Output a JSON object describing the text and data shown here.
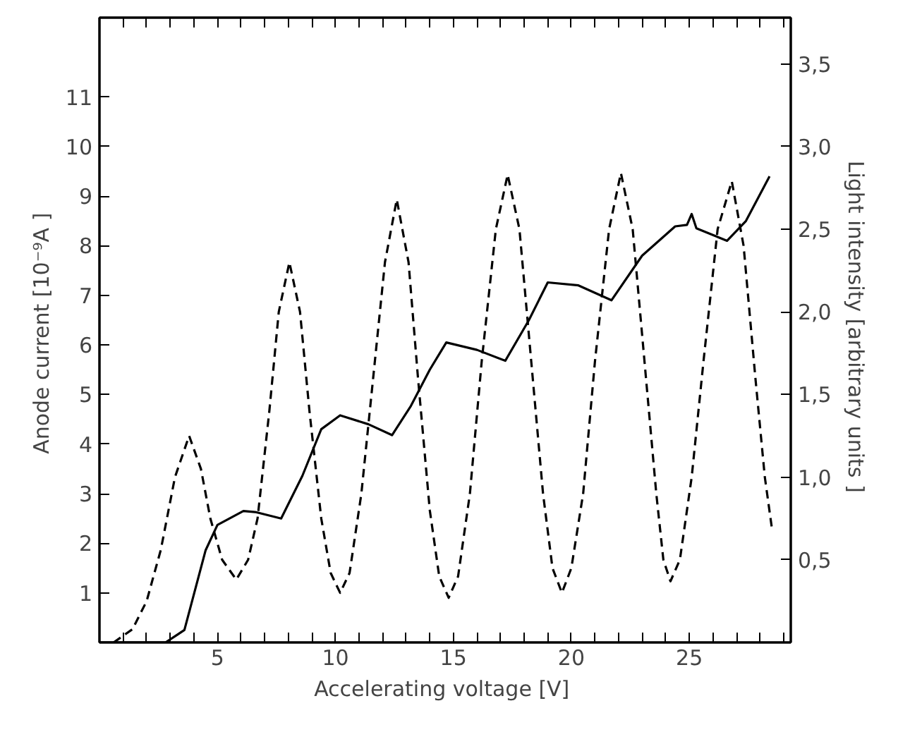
{
  "chart_data": {
    "type": "line",
    "xlabel": "Accelerating voltage  [V]",
    "ylabel": "Anode current  [10⁻⁹A ]",
    "y2label": "Light intensity  [arbitrary units ]",
    "xlim": [
      0,
      29.3
    ],
    "ylim": [
      0,
      12.6
    ],
    "y2lim": [
      0,
      3.78
    ],
    "xticks": [
      {
        "value": 1,
        "label": null
      },
      {
        "value": 2,
        "label": null
      },
      {
        "value": 3,
        "label": null
      },
      {
        "value": 4,
        "label": null
      },
      5,
      {
        "value": 6,
        "label": null
      },
      {
        "value": 7,
        "label": null
      },
      {
        "value": 8,
        "label": null
      },
      {
        "value": 9,
        "label": null
      },
      10,
      {
        "value": 11,
        "label": null
      },
      {
        "value": 12,
        "label": null
      },
      {
        "value": 13,
        "label": null
      },
      {
        "value": 14,
        "label": null
      },
      15,
      {
        "value": 16,
        "label": null
      },
      {
        "value": 17,
        "label": null
      },
      {
        "value": 18,
        "label": null
      },
      {
        "value": 19,
        "label": null
      },
      20,
      {
        "value": 21,
        "label": null
      },
      {
        "value": 22,
        "label": null
      },
      {
        "value": 23,
        "label": null
      },
      {
        "value": 24,
        "label": null
      },
      25,
      {
        "value": 26,
        "label": null
      },
      {
        "value": 27,
        "label": null
      },
      {
        "value": 28,
        "label": null
      },
      {
        "value": 29,
        "label": null
      }
    ],
    "yticks": [
      1,
      2,
      3,
      4,
      5,
      6,
      7,
      8,
      9,
      10,
      11
    ],
    "y2ticks": [
      {
        "value": 0.5,
        "label": "0,5"
      },
      {
        "value": 1.0,
        "label": "1,0"
      },
      {
        "value": 1.5,
        "label": "1,5"
      },
      {
        "value": 2.0,
        "label": "2,0"
      },
      {
        "value": 2.5,
        "label": "2,5"
      },
      {
        "value": 3.0,
        "label": "3,0"
      },
      {
        "value": 3.5,
        "label": "3,5"
      }
    ],
    "grid": false,
    "series": [
      {
        "color": "#000000",
        "line_style": "solid",
        "x": [
          0,
          2.8,
          3.6,
          4.5,
          5.0,
          6.1,
          6.6,
          7.7,
          8.6,
          9.4,
          10.2,
          11.4,
          12.4,
          13.2,
          14.0,
          14.7,
          16.0,
          17.2,
          18.2,
          19.0,
          20.3,
          21.7,
          23.0,
          24.4,
          24.9,
          25.1,
          25.3,
          26.6,
          27.4,
          28.4
        ],
        "values": [
          0,
          0,
          0.25,
          1.86,
          2.37,
          2.65,
          2.63,
          2.5,
          3.36,
          4.3,
          4.58,
          4.4,
          4.18,
          4.77,
          5.5,
          6.05,
          5.9,
          5.68,
          6.5,
          7.26,
          7.2,
          6.9,
          7.8,
          8.39,
          8.42,
          8.64,
          8.35,
          8.1,
          8.5,
          9.4
        ]
      },
      {
        "color": "#000000",
        "line_style": "dashed",
        "axis": "y2",
        "x": [
          0.6,
          1.4,
          2.0,
          2.6,
          3.2,
          3.8,
          4.3,
          4.7,
          5.2,
          5.8,
          6.3,
          6.7,
          7.2,
          7.6,
          8.05,
          8.5,
          8.9,
          9.4,
          9.8,
          10.2,
          10.6,
          11.1,
          11.6,
          12.1,
          12.6,
          13.1,
          13.5,
          14.0,
          14.4,
          14.8,
          15.2,
          15.7,
          16.2,
          16.8,
          17.3,
          17.8,
          18.3,
          18.8,
          19.2,
          19.6,
          20.0,
          20.5,
          21.0,
          21.6,
          22.1,
          22.6,
          23.1,
          23.6,
          23.9,
          24.2,
          24.6,
          25.1,
          25.6,
          26.2,
          26.8,
          27.3,
          27.8,
          28.2,
          28.5
        ],
        "values": [
          0,
          0.08,
          0.25,
          0.56,
          1.0,
          1.25,
          1.05,
          0.75,
          0.5,
          0.38,
          0.5,
          0.75,
          1.4,
          2.0,
          2.3,
          2.0,
          1.4,
          0.75,
          0.42,
          0.3,
          0.42,
          0.9,
          1.6,
          2.3,
          2.68,
          2.3,
          1.6,
          0.8,
          0.4,
          0.27,
          0.4,
          0.9,
          1.7,
          2.5,
          2.83,
          2.5,
          1.7,
          0.9,
          0.45,
          0.3,
          0.45,
          0.9,
          1.7,
          2.5,
          2.84,
          2.5,
          1.7,
          0.9,
          0.5,
          0.37,
          0.5,
          1.0,
          1.7,
          2.5,
          2.79,
          2.4,
          1.6,
          1.0,
          0.69
        ]
      }
    ]
  }
}
